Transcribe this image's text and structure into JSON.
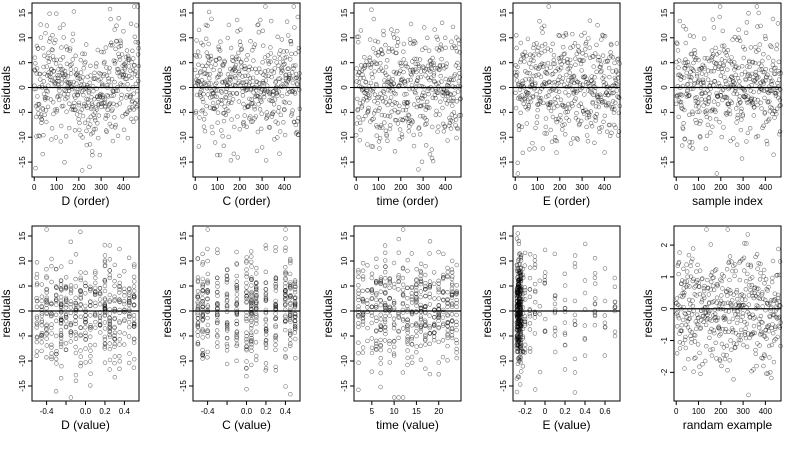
{
  "figure": {
    "residuals_label": "residuals"
  },
  "chart_data": [
    {
      "type": "scatter",
      "xlabel": "D (order)",
      "ylabel": "residuals",
      "xlim": [
        -10,
        470
      ],
      "ylim": [
        -18,
        17
      ],
      "xticks": [
        0,
        100,
        200,
        300,
        400
      ],
      "yticks": [
        -15,
        -10,
        -5,
        0,
        5,
        10,
        15
      ],
      "zero_line": true,
      "n_points": 470,
      "pattern": "index-wave"
    },
    {
      "type": "scatter",
      "xlabel": "C (order)",
      "ylabel": "residuals",
      "xlim": [
        -10,
        470
      ],
      "ylim": [
        -18,
        17
      ],
      "xticks": [
        0,
        100,
        200,
        300,
        400
      ],
      "yticks": [
        -15,
        -10,
        -5,
        0,
        5,
        10,
        15
      ],
      "zero_line": true,
      "n_points": 470,
      "pattern": "index"
    },
    {
      "type": "scatter",
      "xlabel": "time (order)",
      "ylabel": "residuals",
      "xlim": [
        -10,
        470
      ],
      "ylim": [
        -18,
        17
      ],
      "xticks": [
        0,
        100,
        200,
        300,
        400
      ],
      "yticks": [
        -15,
        -10,
        -5,
        0,
        5,
        10,
        15
      ],
      "zero_line": true,
      "n_points": 470,
      "pattern": "index"
    },
    {
      "type": "scatter",
      "xlabel": "E (order)",
      "ylabel": "residuals",
      "xlim": [
        -10,
        470
      ],
      "ylim": [
        -18,
        17
      ],
      "xticks": [
        0,
        100,
        200,
        300,
        400
      ],
      "yticks": [
        -15,
        -10,
        -5,
        0,
        5,
        10,
        15
      ],
      "zero_line": true,
      "n_points": 470,
      "pattern": "index"
    },
    {
      "type": "scatter",
      "xlabel": "sample index",
      "ylabel": "residuals",
      "xlim": [
        -10,
        470
      ],
      "ylim": [
        -18,
        17
      ],
      "xticks": [
        0,
        100,
        200,
        300,
        400
      ],
      "yticks": [
        -15,
        -10,
        -5,
        0,
        5,
        10,
        15
      ],
      "zero_line": true,
      "n_points": 470,
      "pattern": "index"
    },
    {
      "type": "scatter",
      "xlabel": "D (value)",
      "ylabel": "residuals",
      "xlim": [
        -0.55,
        0.55
      ],
      "ylim": [
        -18,
        17
      ],
      "xticks": [
        -0.4,
        -0.2,
        0.0,
        0.2,
        0.4
      ],
      "xtick_labels": [
        "-0.4",
        "",
        "0.0",
        "0.2",
        "0.4"
      ],
      "yticks": [
        -15,
        -10,
        -5,
        0,
        5,
        10,
        15
      ],
      "zero_line": true,
      "n_points": 470,
      "pattern": "columns",
      "columns": [
        -0.5,
        -0.45,
        -0.4,
        -0.35,
        -0.3,
        -0.25,
        -0.2,
        -0.15,
        -0.1,
        -0.05,
        0,
        0.05,
        0.1,
        0.15,
        0.2,
        0.25,
        0.3,
        0.35,
        0.4,
        0.45,
        0.5
      ]
    },
    {
      "type": "scatter",
      "xlabel": "C (value)",
      "ylabel": "residuals",
      "xlim": [
        -0.55,
        0.55
      ],
      "ylim": [
        -18,
        17
      ],
      "xticks": [
        -0.4,
        -0.2,
        0.0,
        0.2,
        0.4
      ],
      "xtick_labels": [
        "-0.4",
        "",
        "0.0",
        "0.2",
        "0.4"
      ],
      "yticks": [
        -15,
        -10,
        -5,
        0,
        5,
        10,
        15
      ],
      "zero_line": true,
      "n_points": 470,
      "pattern": "columns",
      "columns": [
        -0.5,
        -0.45,
        -0.4,
        -0.3,
        -0.2,
        -0.1,
        0,
        0.05,
        0.1,
        0.2,
        0.3,
        0.4,
        0.45,
        0.5
      ]
    },
    {
      "type": "scatter",
      "xlabel": "time (value)",
      "ylabel": "residuals",
      "xlim": [
        1,
        25
      ],
      "ylim": [
        -18,
        17
      ],
      "xticks": [
        5,
        10,
        15,
        20
      ],
      "yticks": [
        -15,
        -10,
        -5,
        0,
        5,
        10,
        15
      ],
      "zero_line": true,
      "n_points": 470,
      "pattern": "columns",
      "columns": [
        2,
        3,
        4,
        5,
        6,
        7,
        8,
        9,
        10,
        11,
        12,
        13,
        14,
        15,
        16,
        17,
        18,
        19,
        20,
        21,
        22,
        23,
        24
      ]
    },
    {
      "type": "scatter",
      "xlabel": "E (value)",
      "ylabel": "residuals",
      "xlim": [
        -0.32,
        0.75
      ],
      "ylim": [
        -18,
        17
      ],
      "xticks": [
        -0.2,
        0.0,
        0.2,
        0.4,
        0.6
      ],
      "yticks": [
        -15,
        -10,
        -5,
        0,
        5,
        10,
        15
      ],
      "zero_line": true,
      "n_points": 470,
      "pattern": "columns-dense-left",
      "columns": [
        -0.28,
        -0.27,
        -0.26,
        -0.25,
        -0.24,
        -0.22,
        -0.2,
        -0.15,
        -0.1,
        -0.05,
        0.0,
        0.1,
        0.2,
        0.3,
        0.4,
        0.5,
        0.6,
        0.7
      ]
    },
    {
      "type": "scatter",
      "xlabel": "randam example",
      "ylabel": "residuals",
      "xlim": [
        -10,
        470
      ],
      "ylim": [
        -2.9,
        2.6
      ],
      "xticks": [
        0,
        100,
        200,
        300,
        400
      ],
      "yticks": [
        -2,
        -1,
        0,
        1,
        2
      ],
      "zero_line": true,
      "n_points": 470,
      "pattern": "index"
    }
  ]
}
